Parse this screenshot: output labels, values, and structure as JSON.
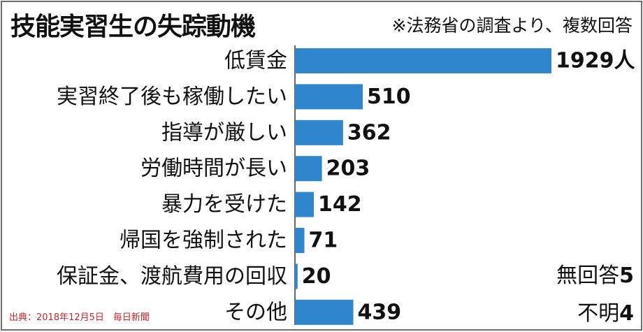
{
  "title": "技能実習生の失踪動機",
  "note": "※法務省の調査より、複数回答",
  "chart_data": {
    "type": "bar",
    "orientation": "horizontal",
    "categories": [
      "低賃金",
      "実習終了後も稼働したい",
      "指導が厳しい",
      "労働時間が長い",
      "暴力を受けた",
      "帰国を強制された",
      "保証金、渡航費用の回収",
      "その他"
    ],
    "values": [
      1929,
      510,
      362,
      203,
      142,
      71,
      20,
      439
    ],
    "value_labels": [
      "1929人",
      "510",
      "362",
      "203",
      "142",
      "71",
      "20",
      "439"
    ],
    "unit": "人",
    "color": "#2f86cc"
  },
  "extra": {
    "no_answer_label": "無回答",
    "no_answer_value": "5",
    "unknown_label": "不明",
    "unknown_value": "4"
  },
  "source": "出典：2018年12月5日　毎日新聞"
}
